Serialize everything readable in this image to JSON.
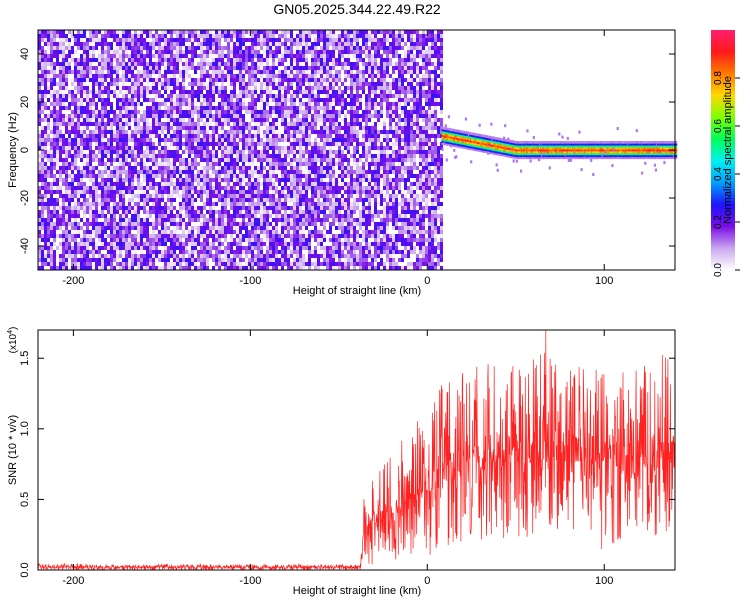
{
  "title": "GN05.2025.344.22.49.R22",
  "chart_data": [
    {
      "type": "heatmap",
      "title": "GN05.2025.344.22.49.R22",
      "xlabel": "Height of straight line (km)",
      "ylabel": "Frequency (Hz)",
      "xlim": [
        -220,
        140
      ],
      "ylim": [
        -50,
        50
      ],
      "xticks": [
        -200,
        -100,
        0,
        100
      ],
      "xtick_labels": [
        "-200",
        "-100",
        "0",
        "100"
      ],
      "yticks": [
        -40,
        -20,
        0,
        20,
        40
      ],
      "ytick_labels": [
        "-40",
        "-20",
        "0",
        "20",
        "40"
      ],
      "noise_region_x": [
        -220,
        8
      ],
      "noise_amplitude_range": [
        0.0,
        0.25
      ],
      "signal_track": {
        "x_start": 8,
        "x_end": 140,
        "freq_at_start": 6,
        "freq_settled": 0,
        "settle_x": 50,
        "peak_amplitude": 0.95,
        "track_width_hz": 3
      },
      "colorbar": {
        "label": "Normalized spectral amplitude",
        "range": [
          0,
          1
        ],
        "ticks": [
          0,
          0.2,
          0.4,
          0.6,
          0.8
        ],
        "tick_labels": [
          "0.0",
          "0.2",
          "0.4",
          "0.6",
          "0.8"
        ],
        "colormap": [
          "#ffffff",
          "#c9a6ee",
          "#7a0de8",
          "#1e14ff",
          "#00a0ff",
          "#00f0f0",
          "#00ff5a",
          "#7dff00",
          "#ffd800",
          "#ff7a00",
          "#ff1a1a",
          "#ff1e6e"
        ]
      }
    },
    {
      "type": "line",
      "xlabel": "Height of straight line (km)",
      "ylabel": "SNR (10 * v/v)",
      "y_multiplier": "(x10",
      "y_multiplier_exp": "4",
      "y_multiplier_close": ")",
      "xlim": [
        -220,
        140
      ],
      "ylim": [
        0,
        1.7
      ],
      "xticks": [
        -200,
        -100,
        0,
        100
      ],
      "xtick_labels": [
        "-200",
        "-100",
        "0",
        "100"
      ],
      "yticks": [
        0,
        0.5,
        1.0,
        1.5
      ],
      "ytick_labels": [
        "0.0",
        "0.5",
        "1.0",
        "1.5"
      ],
      "color": "#ff2020",
      "series": [
        {
          "x": [
            -220,
            -180,
            -140,
            -100,
            -60,
            -38,
            -36,
            -30,
            -20,
            -10,
            0,
            10,
            20,
            30,
            40,
            50,
            60,
            67,
            80,
            90,
            100,
            110,
            120,
            130,
            140
          ],
          "mean": [
            0.02,
            0.02,
            0.02,
            0.02,
            0.02,
            0.02,
            0.25,
            0.32,
            0.38,
            0.45,
            0.52,
            0.58,
            0.65,
            0.7,
            0.72,
            0.75,
            0.76,
            0.78,
            0.77,
            0.76,
            0.77,
            0.76,
            0.75,
            0.74,
            0.75
          ],
          "min": [
            0.0,
            0.0,
            0.0,
            0.0,
            0.0,
            0.0,
            0.02,
            0.04,
            0.06,
            0.08,
            0.1,
            0.14,
            0.18,
            0.2,
            0.22,
            0.22,
            0.22,
            0.25,
            0.22,
            0.22,
            0.1,
            0.22,
            0.22,
            0.22,
            0.22
          ],
          "max": [
            0.05,
            0.04,
            0.04,
            0.04,
            0.04,
            0.04,
            0.55,
            0.68,
            0.86,
            0.96,
            1.18,
            1.35,
            1.4,
            1.45,
            1.48,
            1.48,
            1.5,
            1.7,
            1.5,
            1.46,
            1.5,
            1.48,
            1.45,
            1.52,
            1.55
          ]
        }
      ]
    }
  ]
}
